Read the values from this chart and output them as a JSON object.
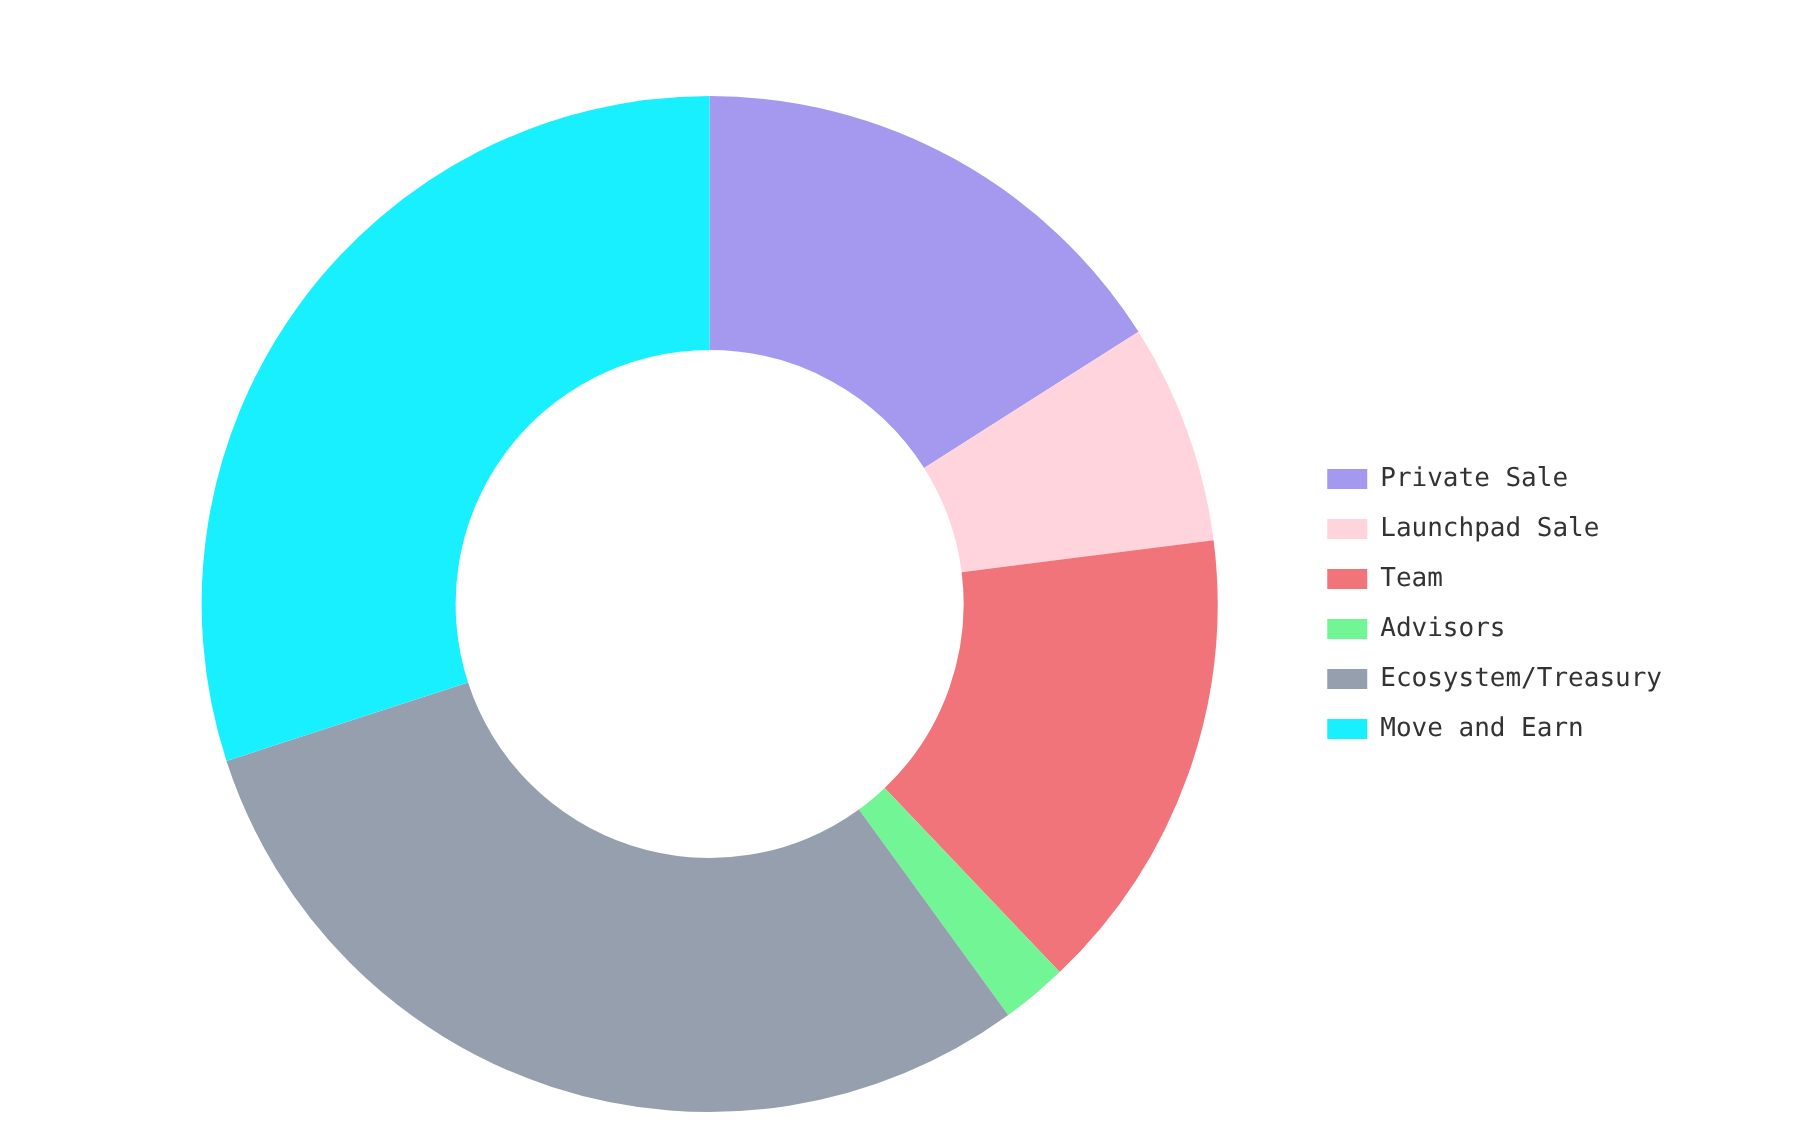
{
  "chart_data": {
    "type": "donut",
    "categories": [
      "Private Sale",
      "Launchpad Sale",
      "Team",
      "Advisors",
      "Ecosystem/Treasury",
      "Move and Earn"
    ],
    "values": [
      16,
      7,
      14.9,
      2.1,
      30,
      30
    ],
    "colors": [
      "#a599ef",
      "#ffd4dc",
      "#f2747b",
      "#72f595",
      "#959fae",
      "#19f0ff"
    ],
    "legend": "right"
  }
}
